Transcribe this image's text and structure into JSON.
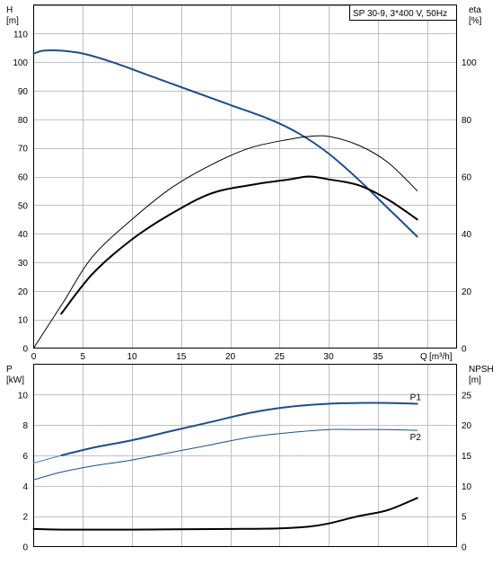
{
  "chart_data": [
    {
      "type": "line",
      "title": "SP 30-9, 3*400 V, 50Hz",
      "xlabel": "Q [m³/h]",
      "ylabel": "H [m]",
      "ylabel_right": "eta [%]",
      "x_label_parts": [
        "Q",
        "[m³/h]"
      ],
      "y_label_parts": [
        "H",
        "[m]"
      ],
      "y2_label_parts": [
        "eta",
        "[%]"
      ],
      "xlim": [
        0,
        43
      ],
      "ylim": [
        0,
        120
      ],
      "y2lim": [
        0,
        120
      ],
      "xticks": [
        0,
        5,
        10,
        15,
        20,
        25,
        30,
        35
      ],
      "yticks": [
        0,
        10,
        20,
        30,
        40,
        50,
        60,
        70,
        80,
        90,
        100,
        110
      ],
      "y2ticks": [
        0,
        20,
        40,
        60,
        80,
        100
      ],
      "grid": true,
      "series": [
        {
          "axis": "left",
          "color": "#1f4e8c",
          "width": 2,
          "x": [
            0,
            1,
            2.8,
            5,
            8,
            12,
            16,
            20,
            24,
            27,
            30,
            33,
            36,
            39
          ],
          "y": [
            103,
            104,
            104,
            103,
            100,
            95,
            90,
            85,
            80,
            75,
            68,
            59,
            49,
            39
          ]
        },
        {
          "axis": "right",
          "color": "#000000",
          "width": 1,
          "x": [
            0,
            3,
            6,
            10,
            14,
            18,
            22,
            26,
            28,
            30,
            33,
            36,
            39
          ],
          "y": [
            0,
            16,
            32,
            45,
            56,
            64,
            70,
            73,
            74,
            74,
            71,
            65,
            55
          ]
        },
        {
          "axis": "right",
          "color": "#000000",
          "width": 2,
          "x": [
            2.8,
            6,
            10,
            14,
            18,
            22,
            26,
            28,
            30,
            33,
            36,
            39
          ],
          "y": [
            12,
            26,
            38,
            47,
            54,
            57,
            59,
            60,
            59,
            57,
            52,
            45
          ]
        }
      ]
    },
    {
      "type": "line",
      "xlabel": "",
      "ylabel": "P [kW]",
      "ylabel_right": "NPSH [m]",
      "y_label_parts": [
        "P",
        "[kW]"
      ],
      "y2_label_parts": [
        "NPSH",
        "[m]"
      ],
      "xlim": [
        0,
        43
      ],
      "ylim": [
        0,
        12
      ],
      "y2lim": [
        0,
        30
      ],
      "yticks": [
        0,
        2,
        4,
        6,
        8,
        10
      ],
      "y2ticks": [
        0,
        5,
        10,
        15,
        20,
        25
      ],
      "grid": true,
      "series": [
        {
          "name": "P1",
          "axis": "left",
          "color": "#1f4e8c",
          "width": 2,
          "x": [
            2.8,
            6,
            10,
            14,
            18,
            22,
            26,
            30,
            33,
            36,
            39
          ],
          "y": [
            6.0,
            6.5,
            7.0,
            7.6,
            8.2,
            8.8,
            9.2,
            9.4,
            9.45,
            9.45,
            9.4
          ]
        },
        {
          "name": "P2",
          "axis": "left",
          "color": "#1f4e8c",
          "width": 1,
          "x": [
            0,
            2.8,
            6,
            10,
            14,
            18,
            22,
            26,
            30,
            33,
            36,
            39
          ],
          "y": [
            4.4,
            4.9,
            5.3,
            5.7,
            6.2,
            6.7,
            7.2,
            7.5,
            7.7,
            7.7,
            7.7,
            7.65
          ]
        },
        {
          "name": "P1",
          "axis": "left",
          "color": "#3f7fbf",
          "width": 1,
          "x": [
            0,
            2.8
          ],
          "y": [
            5.5,
            6.0
          ]
        },
        {
          "axis": "right",
          "color": "#000000",
          "width": 2,
          "x": [
            0,
            2.8,
            10,
            20,
            25,
            28,
            30,
            33,
            36,
            39
          ],
          "y": [
            2.9,
            2.8,
            2.8,
            2.9,
            3.0,
            3.3,
            3.8,
            5.0,
            6.0,
            8.0
          ]
        }
      ]
    }
  ]
}
